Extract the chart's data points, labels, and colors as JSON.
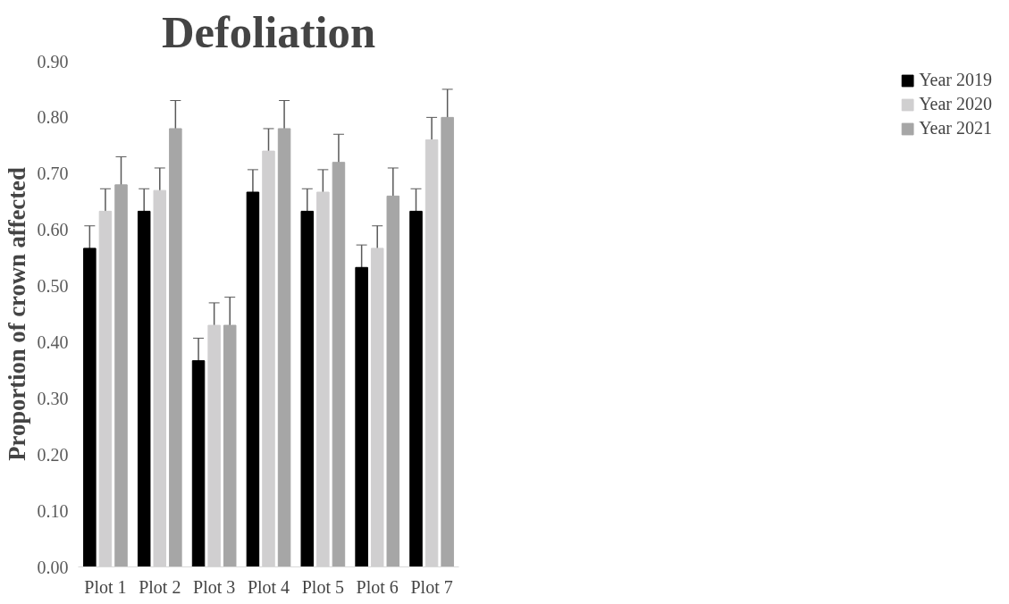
{
  "chart_data": {
    "type": "bar",
    "title": "Defoliation",
    "ylabel": "Proportion of crown affected",
    "categories": [
      "Plot 1",
      "Plot 2",
      "Plot 3",
      "Plot 4",
      "Plot 5",
      "Plot 6",
      "Plot 7"
    ],
    "series": [
      {
        "name": "Year 2019",
        "color": "#000000",
        "values": [
          0.567,
          0.633,
          0.367,
          0.667,
          0.633,
          0.533,
          0.633
        ],
        "errors": [
          0.04,
          0.04,
          0.04,
          0.04,
          0.04,
          0.04,
          0.04
        ]
      },
      {
        "name": "Year 2020",
        "color": "#d0cfd0",
        "values": [
          0.633,
          0.67,
          0.43,
          0.74,
          0.667,
          0.567,
          0.76
        ],
        "errors": [
          0.04,
          0.04,
          0.04,
          0.04,
          0.04,
          0.04,
          0.04
        ]
      },
      {
        "name": "Year 2021",
        "color": "#a6a6a6",
        "values": [
          0.68,
          0.78,
          0.43,
          0.78,
          0.72,
          0.66,
          0.8
        ],
        "errors": [
          0.05,
          0.05,
          0.05,
          0.05,
          0.05,
          0.05,
          0.05
        ]
      }
    ],
    "ylim": [
      0,
      0.9
    ],
    "yticks": [
      {
        "value": 0,
        "label": "0.00"
      },
      {
        "value": 0.1,
        "label": "0.10"
      },
      {
        "value": 0.2,
        "label": "0.20"
      },
      {
        "value": 0.3,
        "label": "0.30"
      },
      {
        "value": 0.4,
        "label": "0.40"
      },
      {
        "value": 0.5,
        "label": "0.50"
      },
      {
        "value": 0.6,
        "label": "0.60"
      },
      {
        "value": 0.7,
        "label": "0.70"
      },
      {
        "value": 0.8,
        "label": "0.80"
      },
      {
        "value": 0.9,
        "label": "0.90"
      }
    ],
    "grid": false,
    "legend": "top right"
  }
}
